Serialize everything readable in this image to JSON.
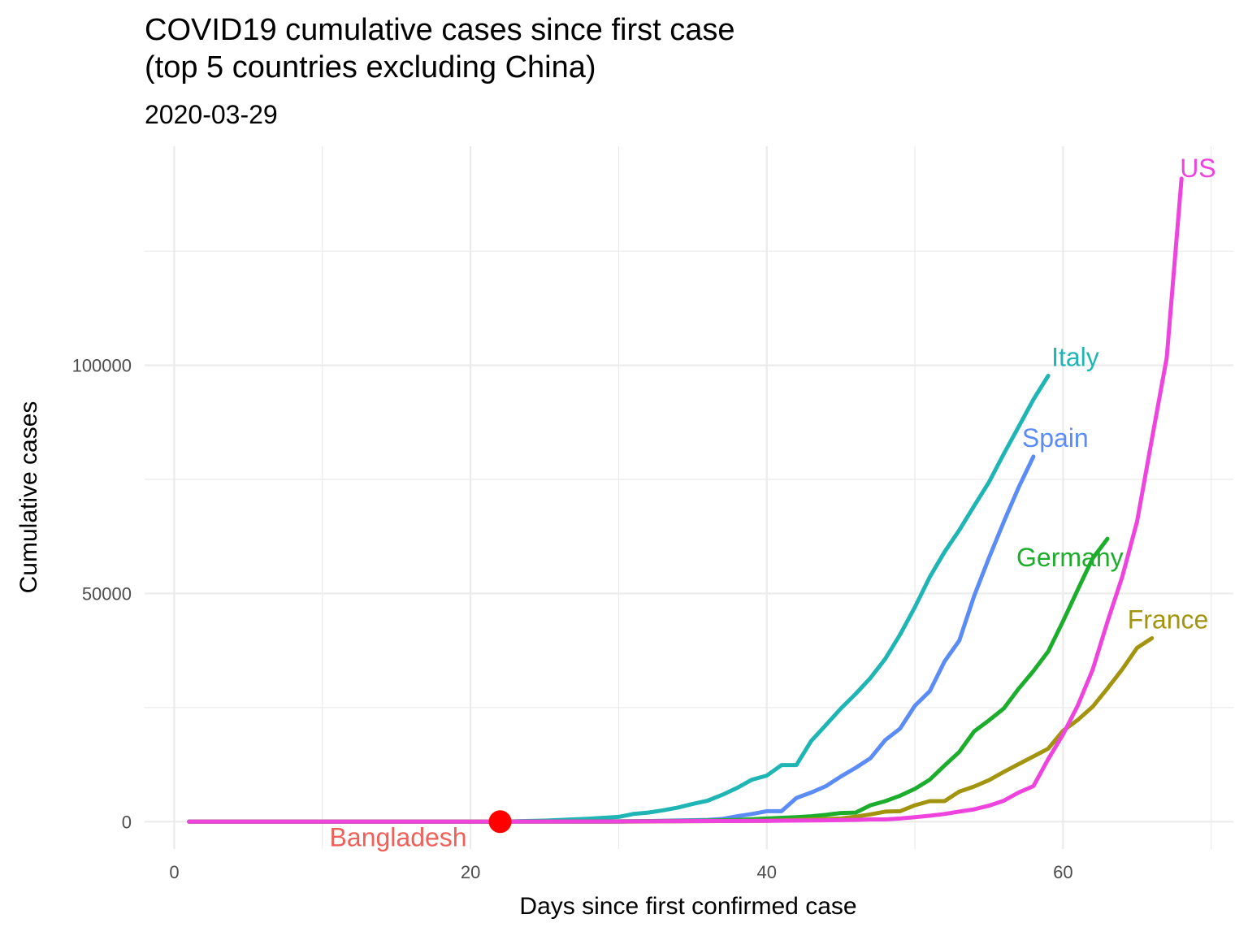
{
  "header": {
    "title_line1": "COVID19 cumulative cases since first case",
    "title_line2": "(top 5 countries excluding China)",
    "subtitle": "2020-03-29"
  },
  "chart_data": {
    "type": "line",
    "title": "COVID19 cumulative cases since first case (top 5 countries excluding China)",
    "subtitle": "2020-03-29",
    "xlabel": "Days since first confirmed case",
    "ylabel": "Cumulative cases",
    "xlim": [
      -2,
      71.5
    ],
    "ylim": [
      -6000,
      148000
    ],
    "x_ticks": [
      0,
      20,
      40,
      60
    ],
    "y_ticks": [
      0,
      50000,
      100000
    ],
    "x_tick_labels": [
      "0",
      "20",
      "40",
      "60"
    ],
    "y_tick_labels": [
      "0",
      "50000",
      "100000"
    ],
    "grid": true,
    "legend": "none (direct labels)",
    "series": [
      {
        "name": "Italy",
        "color": "#1FB5B5",
        "x": [
          1,
          5,
          10,
          20,
          22,
          25,
          28,
          30,
          31,
          32,
          33,
          34,
          35,
          36,
          37,
          38,
          39,
          40,
          41,
          42,
          43,
          44,
          45,
          46,
          47,
          48,
          49,
          50,
          51,
          52,
          53,
          54,
          55,
          56,
          57,
          58,
          59
        ],
        "y": [
          3,
          3,
          3,
          3,
          20,
          230,
          650,
          1050,
          1700,
          2000,
          2500,
          3100,
          3900,
          4600,
          5900,
          7400,
          9200,
          10100,
          12400,
          12400,
          17700,
          21200,
          24800,
          28000,
          31500,
          35700,
          41000,
          47000,
          53600,
          59100,
          63900,
          69200,
          74400,
          80600,
          86500,
          92500,
          97700
        ]
      },
      {
        "name": "Spain",
        "color": "#5B8CF5",
        "x": [
          1,
          10,
          20,
          30,
          36,
          37,
          38,
          39,
          40,
          41,
          42,
          43,
          44,
          45,
          46,
          47,
          48,
          49,
          50,
          51,
          52,
          53,
          54,
          55,
          56,
          57,
          58
        ],
        "y": [
          1,
          2,
          2,
          2,
          400,
          600,
          1200,
          1700,
          2300,
          2300,
          5200,
          6400,
          7800,
          9900,
          11800,
          13900,
          17900,
          20400,
          25400,
          28600,
          35100,
          39700,
          49500,
          57800,
          65700,
          73200,
          80000
        ]
      },
      {
        "name": "Germany",
        "color": "#1DAD2C",
        "x": [
          1,
          20,
          30,
          35,
          38,
          40,
          42,
          43,
          44,
          45,
          46,
          47,
          48,
          49,
          50,
          51,
          52,
          53,
          54,
          55,
          56,
          57,
          58,
          59,
          60,
          61,
          62,
          63
        ],
        "y": [
          1,
          16,
          100,
          200,
          400,
          700,
          1000,
          1200,
          1500,
          1900,
          2000,
          3600,
          4500,
          5700,
          7200,
          9200,
          12300,
          15300,
          19800,
          22200,
          24800,
          29100,
          33000,
          37300,
          43900,
          50900,
          57700,
          62000
        ]
      },
      {
        "name": "France",
        "color": "#A3940F",
        "x": [
          1,
          30,
          40,
          45,
          46,
          47,
          48,
          49,
          50,
          51,
          52,
          53,
          54,
          55,
          56,
          57,
          58,
          59,
          60,
          61,
          62,
          63,
          64,
          65,
          66
        ],
        "y": [
          2,
          12,
          200,
          700,
          1100,
          1600,
          2200,
          2300,
          3600,
          4500,
          4500,
          6600,
          7700,
          9100,
          10900,
          12600,
          14300,
          16000,
          19900,
          22300,
          25200,
          29200,
          33400,
          38100,
          40200
        ]
      },
      {
        "name": "US",
        "color": "#EE44DD",
        "x": [
          1,
          10,
          20,
          30,
          40,
          44,
          46,
          47,
          48,
          49,
          50,
          51,
          52,
          53,
          54,
          55,
          56,
          57,
          58,
          59,
          60,
          61,
          62,
          63,
          64,
          65,
          66,
          67,
          68
        ],
        "y": [
          1,
          12,
          15,
          60,
          200,
          300,
          400,
          500,
          500,
          700,
          1000,
          1300,
          1700,
          2200,
          2700,
          3500,
          4600,
          6400,
          7800,
          13700,
          19100,
          25500,
          33300,
          43800,
          53700,
          65800,
          83800,
          101700,
          140900
        ]
      },
      {
        "name": "Bangladesh",
        "color": "#F0605A",
        "x": [
          22
        ],
        "y": [
          3
        ],
        "marker": {
          "color": "#FF0000",
          "size": "large dot"
        }
      }
    ]
  }
}
